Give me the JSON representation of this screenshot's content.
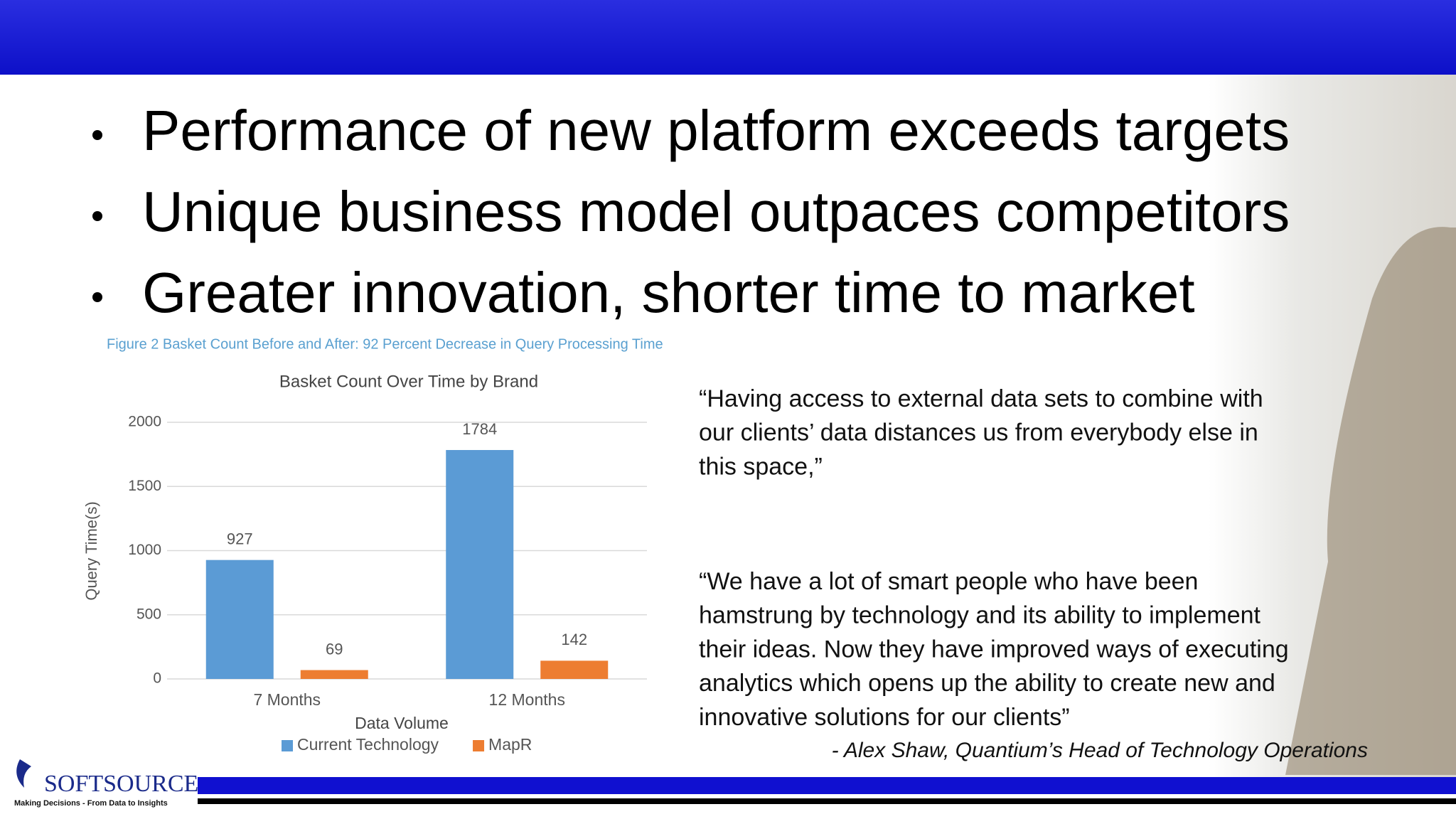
{
  "bullets": [
    "Performance of new platform exceeds targets",
    "Unique business model outpaces competitors",
    "Greater innovation, shorter time to market"
  ],
  "figure_caption": "Figure 2  Basket Count Before and After: 92 Percent Decrease in Query Processing Time",
  "chart_data": {
    "type": "bar",
    "title": "Basket Count Over Time by Brand",
    "categories": [
      "7 Months",
      "12 Months"
    ],
    "series": [
      {
        "name": "Current Technology",
        "color": "#5b9bd5",
        "values": [
          927,
          1784
        ]
      },
      {
        "name": "MapR",
        "color": "#ed7d31",
        "values": [
          69,
          142
        ]
      }
    ],
    "x_label": "Data Volume",
    "y_label": "Query Time(s)",
    "ylim": [
      0,
      2000
    ],
    "yticks": [
      0,
      500,
      1000,
      1500,
      2000
    ],
    "grid": true,
    "legend": "bottom",
    "data_labels": true
  },
  "quotes": [
    [
      "“Having access to external data sets to combine with",
      "our clients’ data distances us from everybody else in",
      "this space,”"
    ],
    [
      "“We have a lot of smart people who have been",
      "hamstrung by technology and its ability to implement",
      "their ideas. Now they have improved ways of executing",
      "analytics which opens up the ability to create new and",
      "innovative solutions for our clients”"
    ]
  ],
  "attribution": "- Alex Shaw, Quantium’s Head of Technology Operations",
  "logo": {
    "name": "SOFTSOURCE",
    "tagline": "Making Decisions - From Data to Insights"
  }
}
